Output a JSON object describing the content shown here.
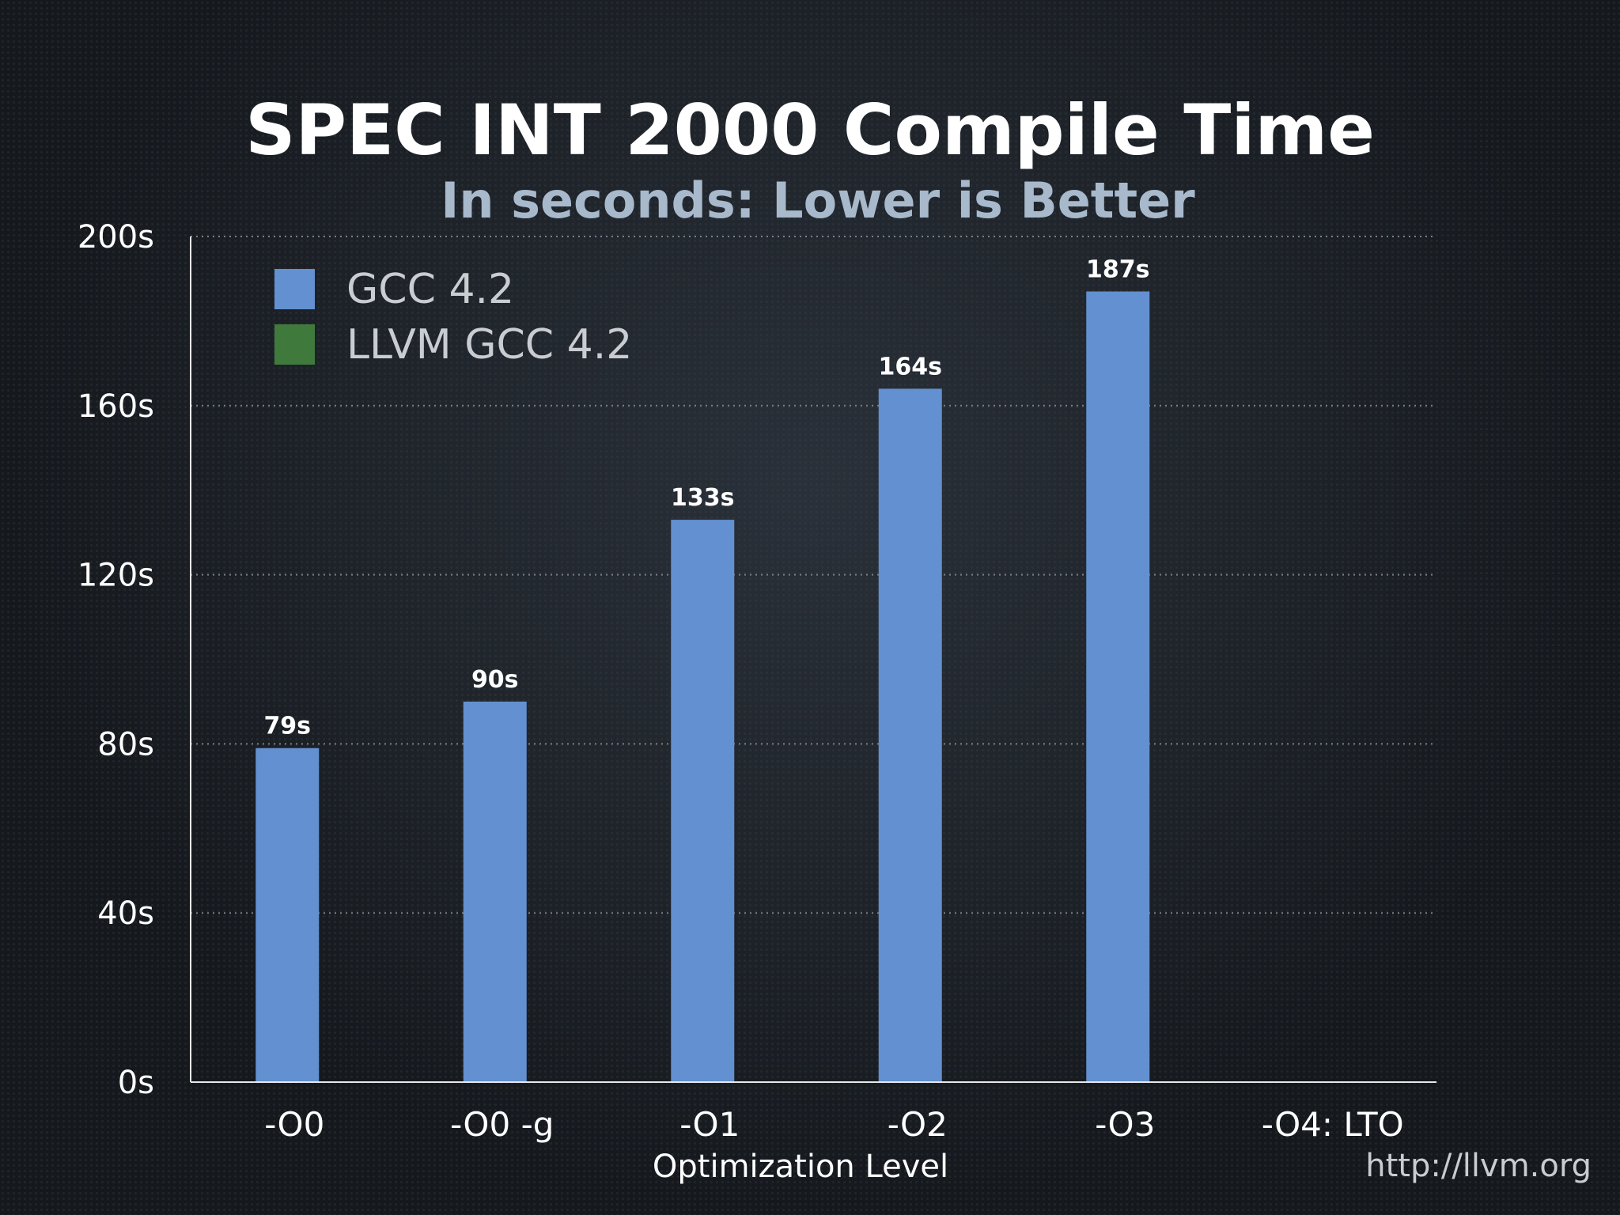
{
  "chart_data": {
    "type": "bar",
    "title": "SPEC INT 2000 Compile Time",
    "subtitle": "In seconds: Lower is Better",
    "xlabel": "Optimization Level",
    "ylabel": "",
    "categories": [
      "-O0",
      "-O0 -g",
      "-O1",
      "-O2",
      "-O3",
      "-O4: LTO"
    ],
    "series": [
      {
        "name": "GCC 4.2",
        "color": "#6390d0",
        "values": [
          79,
          90,
          133,
          164,
          187,
          null
        ],
        "labels": [
          "79s",
          "90s",
          "133s",
          "164s",
          "187s",
          ""
        ]
      },
      {
        "name": "LLVM GCC 4.2",
        "color": "#3f7a3c",
        "values": [
          null,
          null,
          null,
          null,
          null,
          null
        ],
        "labels": [
          "",
          "",
          "",
          "",
          "",
          ""
        ]
      }
    ],
    "ylim": [
      0,
      200
    ],
    "yticks": [
      0,
      40,
      80,
      120,
      160,
      200
    ],
    "ytick_labels": [
      "0s",
      "40s",
      "80s",
      "120s",
      "160s",
      "200s"
    ],
    "grid": true,
    "legend_position": "top-left"
  },
  "watermark": "http://llvm.org"
}
